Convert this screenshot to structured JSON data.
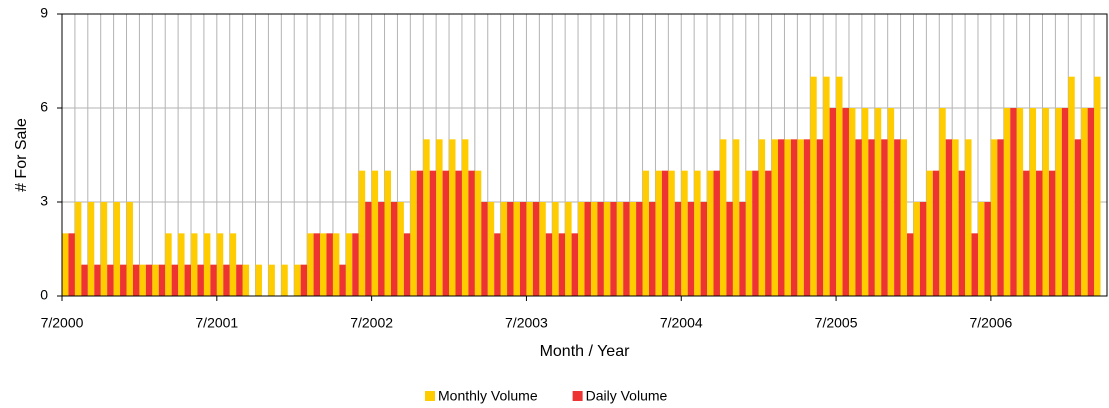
{
  "chart_data": {
    "type": "bar",
    "x_label": "Month / Year",
    "y_label": "# For Sale",
    "categories": [
      "7/2000",
      null,
      null,
      null,
      null,
      null,
      null,
      null,
      null,
      null,
      null,
      null,
      "7/2001",
      null,
      null,
      null,
      null,
      null,
      null,
      null,
      null,
      null,
      null,
      null,
      "7/2002",
      null,
      null,
      null,
      null,
      null,
      null,
      null,
      null,
      null,
      null,
      null,
      "7/2003",
      null,
      null,
      null,
      null,
      null,
      null,
      null,
      null,
      null,
      null,
      null,
      "7/2004",
      null,
      null,
      null,
      null,
      null,
      null,
      null,
      null,
      null,
      null,
      null,
      "7/2005",
      null,
      null,
      null,
      null,
      null,
      null,
      null,
      null,
      null,
      null,
      null,
      "7/2006",
      null,
      null,
      null,
      null,
      null,
      null,
      null,
      null
    ],
    "series": [
      {
        "name": "Monthly Volume",
        "color": "#ffcc00",
        "values": [
          2,
          3,
          3,
          3,
          3,
          3,
          1,
          1,
          2,
          2,
          2,
          2,
          2,
          2,
          1,
          1,
          1,
          1,
          1,
          2,
          2,
          2,
          2,
          4,
          4,
          4,
          3,
          4,
          5,
          5,
          5,
          5,
          4,
          3,
          3,
          3,
          3,
          3,
          3,
          3,
          3,
          3,
          3,
          3,
          3,
          4,
          4,
          4,
          4,
          4,
          4,
          5,
          5,
          4,
          5,
          5,
          5,
          5,
          7,
          7,
          7,
          6,
          6,
          6,
          6,
          5,
          3,
          4,
          6,
          5,
          5,
          3,
          5,
          6,
          6,
          6,
          6,
          6,
          7,
          6,
          7
        ]
      },
      {
        "name": "Daily Volume",
        "color": "#ee3333",
        "values": [
          2,
          1,
          1,
          1,
          1,
          1,
          1,
          1,
          1,
          1,
          1,
          1,
          1,
          1,
          0,
          0,
          0,
          0,
          1,
          2,
          2,
          1,
          2,
          3,
          3,
          3,
          2,
          4,
          4,
          4,
          4,
          4,
          3,
          2,
          3,
          3,
          3,
          2,
          2,
          2,
          3,
          3,
          3,
          3,
          3,
          3,
          4,
          3,
          3,
          3,
          4,
          3,
          3,
          4,
          4,
          5,
          5,
          5,
          5,
          6,
          6,
          5,
          5,
          5,
          5,
          2,
          3,
          4,
          5,
          4,
          2,
          3,
          5,
          6,
          4,
          4,
          4,
          6,
          5,
          6,
          0
        ]
      }
    ],
    "ylim": [
      0,
      9
    ],
    "yticks": [
      0,
      3,
      6,
      9
    ],
    "grid": true,
    "legend": "bottom"
  }
}
